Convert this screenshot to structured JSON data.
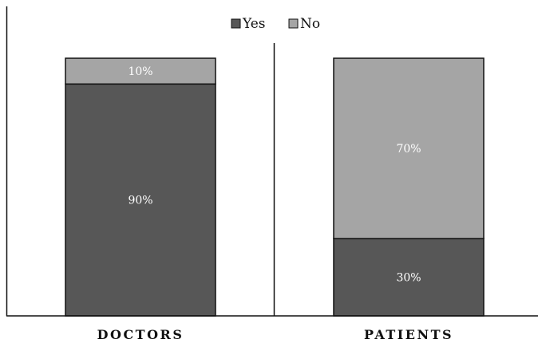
{
  "chart_data": {
    "type": "bar",
    "stacked": true,
    "percent": true,
    "categories": [
      "DOCTORS",
      "PATIENTS"
    ],
    "series": [
      {
        "name": "Yes",
        "values": [
          90,
          30
        ],
        "labels": [
          "90%",
          "30%"
        ],
        "color": "#575757"
      },
      {
        "name": "No",
        "values": [
          10,
          70
        ],
        "labels": [
          "10%",
          "70%"
        ],
        "color": "#a5a5a5"
      }
    ],
    "ylim": [
      0,
      100
    ],
    "grid": false,
    "legend": "top-center"
  }
}
